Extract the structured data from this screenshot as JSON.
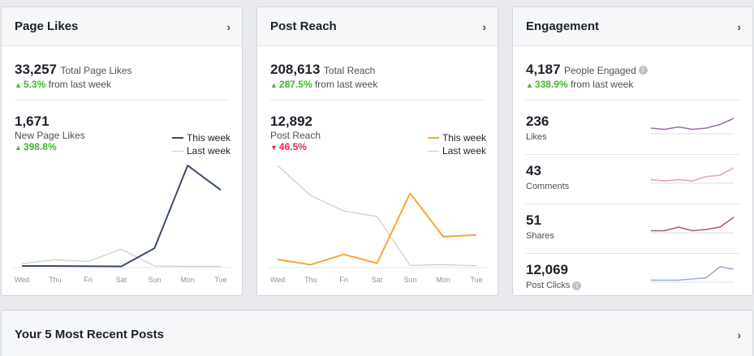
{
  "page_likes": {
    "title": "Page Likes",
    "total_value": "33,257",
    "total_label": "Total Page Likes",
    "total_change": "5.3%",
    "total_change_suffix": "from last week",
    "new_value": "1,671",
    "new_label": "New Page Likes",
    "new_change": "398.8%",
    "legend_this": "This week",
    "legend_last": "Last week",
    "color_this": "#3b4a6b",
    "color_last": "#cccccc"
  },
  "post_reach": {
    "title": "Post Reach",
    "total_value": "208,613",
    "total_label": "Total Reach",
    "total_change": "287.5%",
    "total_change_suffix": "from last week",
    "new_value": "12,892",
    "new_label": "Post Reach",
    "new_change": "46.5%",
    "legend_this": "This week",
    "legend_last": "Last week",
    "color_this": "#f7a833",
    "color_last": "#cccccc"
  },
  "engagement": {
    "title": "Engagement",
    "total_value": "4,187",
    "total_label": "People Engaged",
    "info_icon": "info-icon",
    "total_change": "338.9%",
    "total_change_suffix": "from last week",
    "rows": [
      {
        "value": "236",
        "label": "Likes",
        "color": "#9b6ea8"
      },
      {
        "value": "43",
        "label": "Comments",
        "color": "#dba9c8"
      },
      {
        "value": "51",
        "label": "Shares",
        "color": "#a85a80"
      },
      {
        "value": "12,069",
        "label": "Post Clicks",
        "color": "#9aaed0"
      }
    ]
  },
  "recent_posts": {
    "title": "Your 5 Most Recent Posts"
  },
  "chevron": "›",
  "chart_data": [
    {
      "type": "line",
      "categories": [
        "Wed",
        "Thu",
        "Fri",
        "Sat",
        "Sun",
        "Mon",
        "Tue"
      ],
      "series": [
        {
          "name": "This week",
          "values": [
            8,
            8,
            7,
            6,
            95,
            500,
            380
          ]
        },
        {
          "name": "Last week",
          "values": [
            20,
            38,
            30,
            90,
            8,
            6,
            6
          ]
        }
      ],
      "ylim": [
        0,
        540
      ]
    },
    {
      "type": "line",
      "categories": [
        "Wed",
        "Thu",
        "Fri",
        "Sat",
        "Sun",
        "Mon",
        "Tue"
      ],
      "series": [
        {
          "name": "This week",
          "values": [
            2200,
            800,
            3600,
            1200,
            20200,
            8400,
            8900
          ]
        },
        {
          "name": "Last week",
          "values": [
            27800,
            19600,
            15400,
            13900,
            600,
            800,
            500
          ]
        }
      ],
      "ylim": [
        0,
        30000
      ]
    },
    {
      "type": "line",
      "name": "Likes",
      "values": [
        4,
        3,
        5,
        3,
        4,
        7,
        12
      ]
    },
    {
      "type": "line",
      "name": "Comments",
      "values": [
        2,
        1,
        2,
        1,
        4,
        5,
        10
      ]
    },
    {
      "type": "line",
      "name": "Shares",
      "values": [
        1,
        1,
        4,
        1,
        2,
        4,
        12
      ]
    },
    {
      "type": "line",
      "name": "Post Clicks",
      "values": [
        1,
        1,
        1,
        2,
        3,
        12,
        10
      ]
    }
  ]
}
